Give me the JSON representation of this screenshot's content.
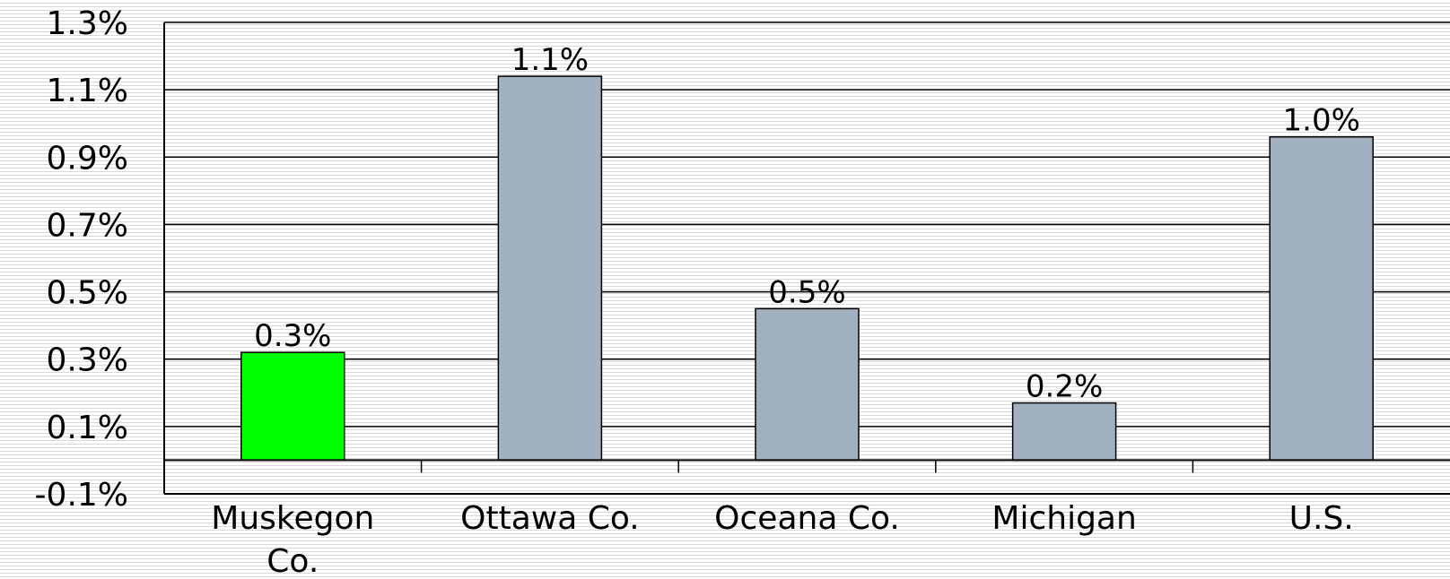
{
  "chart_data": {
    "type": "bar",
    "categories": [
      [
        "Muskegon",
        "Co."
      ],
      [
        "Ottawa Co."
      ],
      [
        "Oceana Co."
      ],
      [
        "Michigan"
      ],
      [
        "U.S."
      ]
    ],
    "values": [
      0.32,
      1.14,
      0.45,
      0.17,
      0.96
    ],
    "data_labels": [
      "0.3%",
      "1.1%",
      "0.5%",
      "0.2%",
      "1.0%"
    ],
    "bar_colors": [
      "#00ff00",
      "#a2b1c0",
      "#a2b1c0",
      "#a2b1c0",
      "#a2b1c0"
    ],
    "bar_stroke": "#000000",
    "gridline_color": "#000000",
    "ylim": [
      -0.1,
      1.3
    ],
    "yticks": [
      -0.1,
      0.1,
      0.3,
      0.5,
      0.7,
      0.9,
      1.1,
      1.3
    ],
    "ytick_labels": [
      "-0.1%",
      "0.1%",
      "0.3%",
      "0.5%",
      "0.7%",
      "0.9%",
      "1.1%",
      "1.3%"
    ],
    "grid": true,
    "legend": "none",
    "title": "",
    "xlabel": "",
    "ylabel": ""
  }
}
